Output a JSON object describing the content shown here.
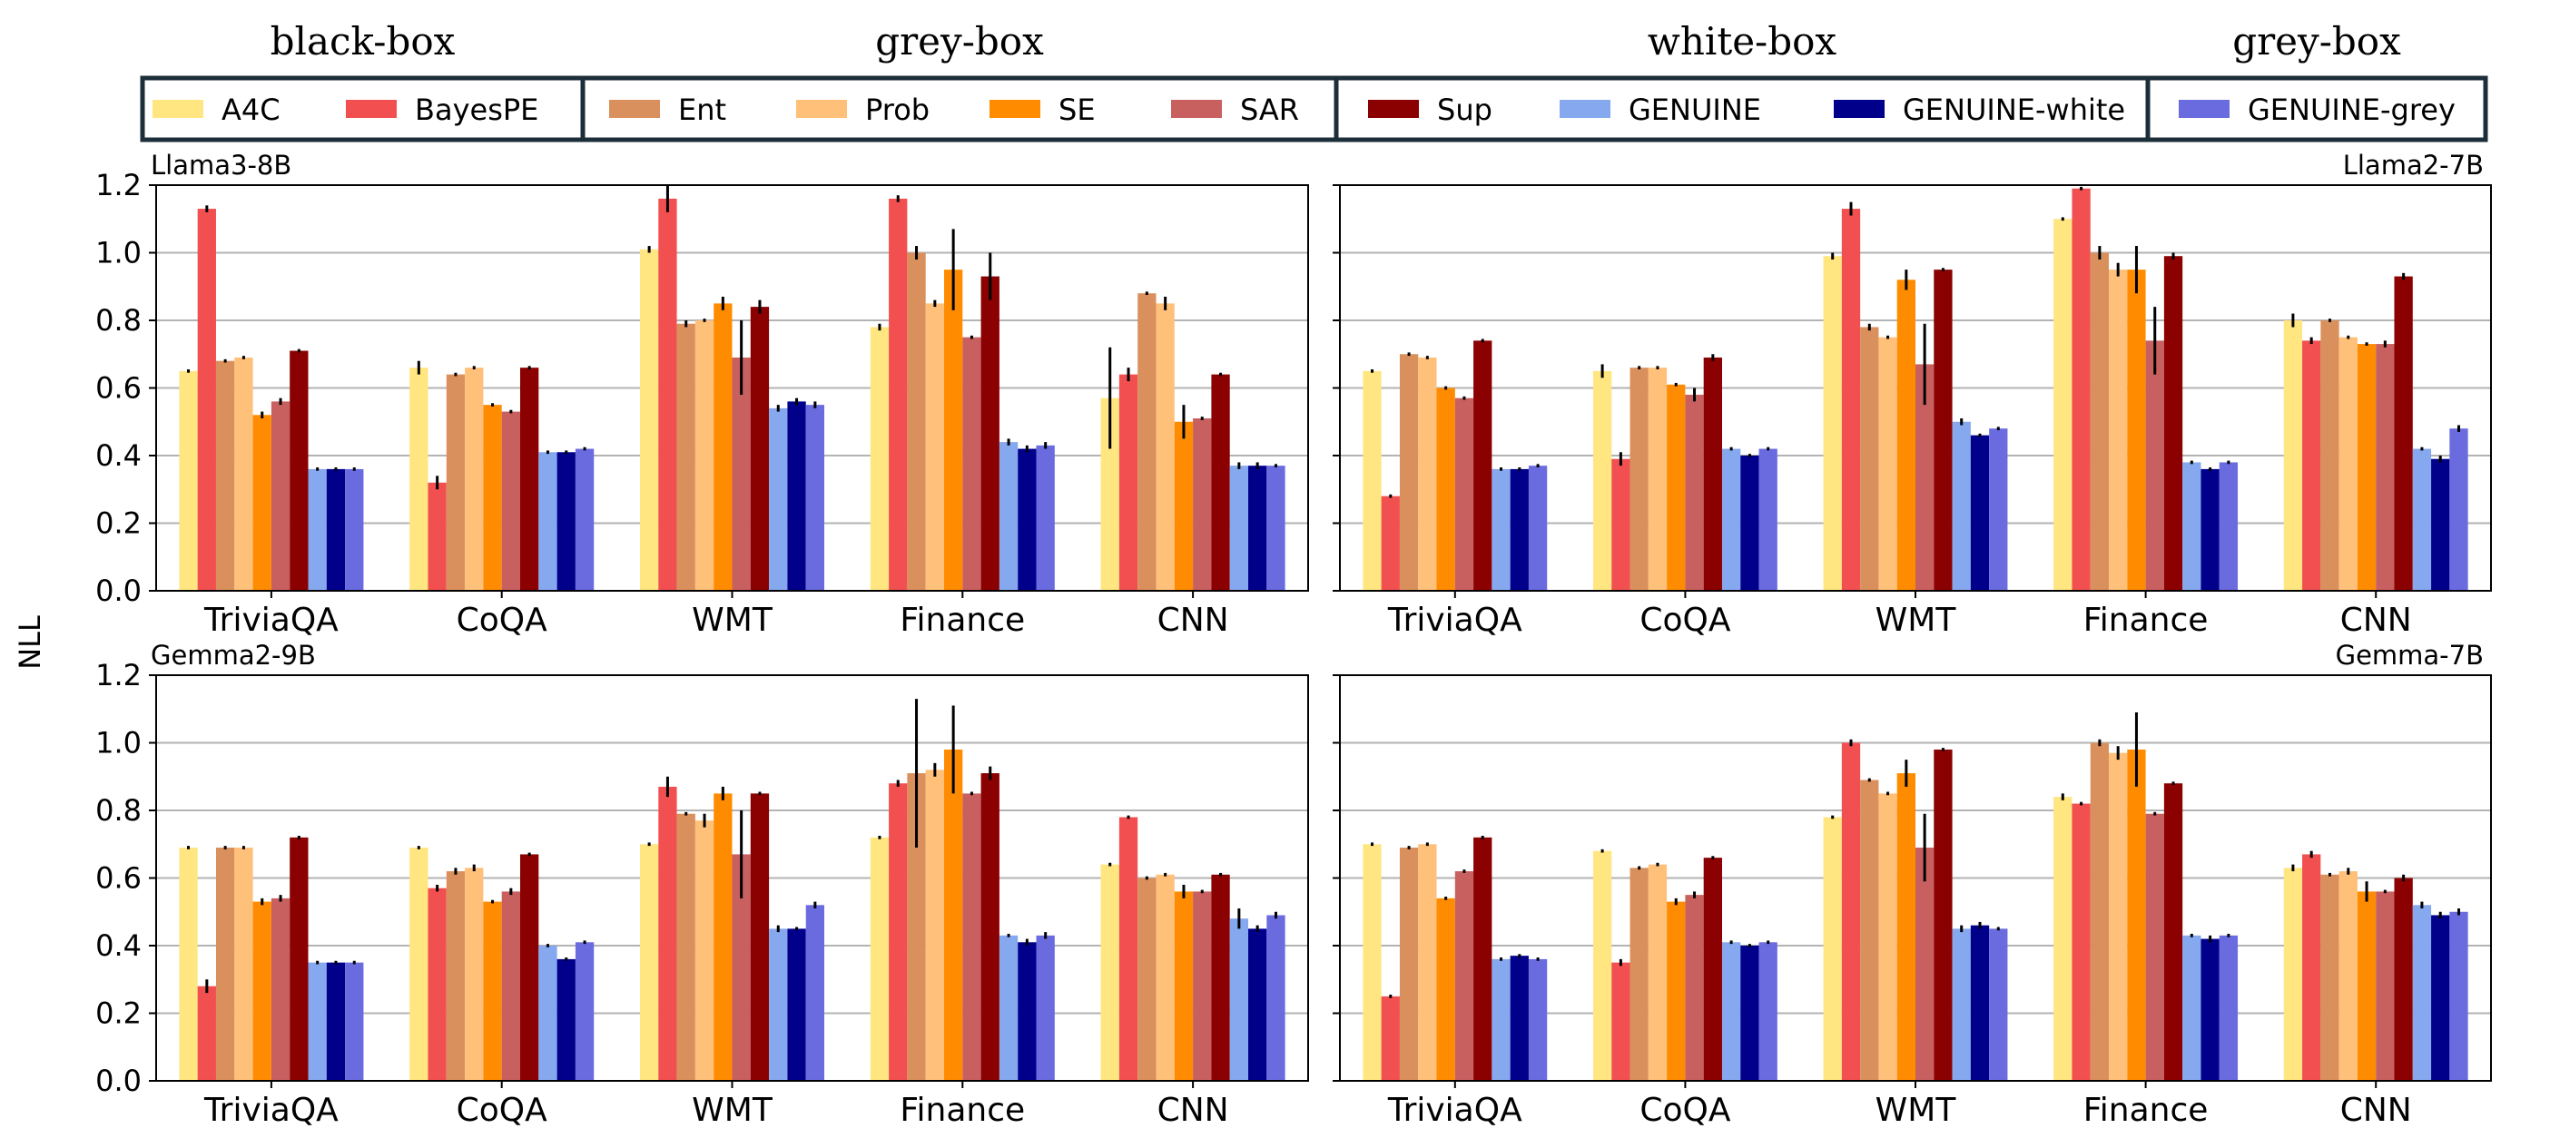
{
  "chart_data": {
    "type": "bar",
    "ylabel": "NLL",
    "ylim": [
      0,
      1.2
    ],
    "yticks": [
      "0.0",
      "0.2",
      "0.4",
      "0.6",
      "0.8",
      "1.0",
      "1.2"
    ],
    "grid": "horizontal",
    "categories": [
      "TriviaQA",
      "CoQA",
      "WMT",
      "Finance",
      "CNN"
    ],
    "legend_groups": [
      {
        "label": "black-box",
        "methods": [
          "A4C",
          "BayesPE"
        ]
      },
      {
        "label": "grey-box",
        "methods": [
          "Ent",
          "Prob",
          "SE",
          "SAR"
        ]
      },
      {
        "label": "white-box",
        "methods": [
          "Sup",
          "GENUINE",
          "GENUINE-white"
        ]
      },
      {
        "label": "grey-box",
        "methods": [
          "GENUINE-grey"
        ]
      }
    ],
    "series_colors": {
      "A4C": "#ffe680",
      "BayesPE": "#f25050",
      "Ent": "#d9905c",
      "Prob": "#ffc07a",
      "SE": "#ff8c00",
      "SAR": "#c86060",
      "Sup": "#8b0000",
      "GENUINE": "#86a8ee",
      "GENUINE-white": "#00008b",
      "GENUINE-grey": "#6b6be0"
    },
    "panels": [
      {
        "title": "Llama3-8B",
        "title_side": "left",
        "values": {
          "A4C": [
            0.65,
            0.66,
            1.01,
            0.78,
            0.57
          ],
          "BayesPE": [
            1.13,
            0.32,
            1.16,
            1.16,
            0.64
          ],
          "Ent": [
            0.68,
            0.64,
            0.79,
            1.0,
            0.88
          ],
          "Prob": [
            0.69,
            0.66,
            0.8,
            0.85,
            0.85
          ],
          "SE": [
            0.52,
            0.55,
            0.85,
            0.95,
            0.5
          ],
          "SAR": [
            0.56,
            0.53,
            0.69,
            0.75,
            0.51
          ],
          "Sup": [
            0.71,
            0.66,
            0.84,
            0.93,
            0.64
          ],
          "GENUINE": [
            0.36,
            0.41,
            0.54,
            0.44,
            0.37
          ],
          "GENUINE-white": [
            0.36,
            0.41,
            0.56,
            0.42,
            0.37
          ],
          "GENUINE-grey": [
            0.36,
            0.42,
            0.55,
            0.43,
            0.37
          ]
        },
        "errors": {
          "A4C": [
            0.005,
            0.02,
            0.01,
            0.01,
            0.15
          ],
          "BayesPE": [
            0.01,
            0.02,
            0.04,
            0.01,
            0.02
          ],
          "Ent": [
            0.005,
            0.005,
            0.01,
            0.02,
            0.005
          ],
          "Prob": [
            0.005,
            0.005,
            0.005,
            0.01,
            0.02
          ],
          "SE": [
            0.01,
            0.005,
            0.02,
            0.12,
            0.05
          ],
          "SAR": [
            0.01,
            0.005,
            0.11,
            0.005,
            0.005
          ],
          "Sup": [
            0.005,
            0.005,
            0.02,
            0.07,
            0.005
          ],
          "GENUINE": [
            0.005,
            0.005,
            0.01,
            0.01,
            0.01
          ],
          "GENUINE-white": [
            0.005,
            0.005,
            0.01,
            0.01,
            0.01
          ],
          "GENUINE-grey": [
            0.005,
            0.005,
            0.01,
            0.01,
            0.005
          ]
        }
      },
      {
        "title": "Llama2-7B",
        "title_side": "right",
        "values": {
          "A4C": [
            0.65,
            0.65,
            0.99,
            1.1,
            0.8
          ],
          "BayesPE": [
            0.28,
            0.39,
            1.13,
            1.19,
            0.74
          ],
          "Ent": [
            0.7,
            0.66,
            0.78,
            1.0,
            0.8
          ],
          "Prob": [
            0.69,
            0.66,
            0.75,
            0.95,
            0.75
          ],
          "SE": [
            0.6,
            0.61,
            0.92,
            0.95,
            0.73
          ],
          "SAR": [
            0.57,
            0.58,
            0.67,
            0.74,
            0.73
          ],
          "Sup": [
            0.74,
            0.69,
            0.95,
            0.99,
            0.93
          ],
          "GENUINE": [
            0.36,
            0.42,
            0.5,
            0.38,
            0.42
          ],
          "GENUINE-white": [
            0.36,
            0.4,
            0.46,
            0.36,
            0.39
          ],
          "GENUINE-grey": [
            0.37,
            0.42,
            0.48,
            0.38,
            0.48
          ]
        },
        "errors": {
          "A4C": [
            0.005,
            0.02,
            0.01,
            0.005,
            0.02
          ],
          "BayesPE": [
            0.005,
            0.02,
            0.02,
            0.005,
            0.01
          ],
          "Ent": [
            0.005,
            0.005,
            0.01,
            0.02,
            0.005
          ],
          "Prob": [
            0.005,
            0.005,
            0.005,
            0.02,
            0.005
          ],
          "SE": [
            0.005,
            0.005,
            0.03,
            0.07,
            0.005
          ],
          "SAR": [
            0.005,
            0.02,
            0.12,
            0.1,
            0.01
          ],
          "Sup": [
            0.005,
            0.01,
            0.005,
            0.01,
            0.01
          ],
          "GENUINE": [
            0.005,
            0.005,
            0.01,
            0.005,
            0.005
          ],
          "GENUINE-white": [
            0.005,
            0.005,
            0.005,
            0.005,
            0.01
          ],
          "GENUINE-grey": [
            0.005,
            0.005,
            0.005,
            0.005,
            0.01
          ]
        }
      },
      {
        "title": "Gemma2-9B",
        "title_side": "left",
        "values": {
          "A4C": [
            0.69,
            0.69,
            0.7,
            0.72,
            0.64
          ],
          "BayesPE": [
            0.28,
            0.57,
            0.87,
            0.88,
            0.78
          ],
          "Ent": [
            0.69,
            0.62,
            0.79,
            0.91,
            0.6
          ],
          "Prob": [
            0.69,
            0.63,
            0.77,
            0.92,
            0.61
          ],
          "SE": [
            0.53,
            0.53,
            0.85,
            0.98,
            0.56
          ],
          "SAR": [
            0.54,
            0.56,
            0.67,
            0.85,
            0.56
          ],
          "Sup": [
            0.72,
            0.67,
            0.85,
            0.91,
            0.61
          ],
          "GENUINE": [
            0.35,
            0.4,
            0.45,
            0.43,
            0.48
          ],
          "GENUINE-white": [
            0.35,
            0.36,
            0.45,
            0.41,
            0.45
          ],
          "GENUINE-grey": [
            0.35,
            0.41,
            0.52,
            0.43,
            0.49
          ]
        },
        "errors": {
          "A4C": [
            0.005,
            0.005,
            0.005,
            0.005,
            0.005
          ],
          "BayesPE": [
            0.02,
            0.01,
            0.03,
            0.01,
            0.005
          ],
          "Ent": [
            0.005,
            0.01,
            0.005,
            0.22,
            0.005
          ],
          "Prob": [
            0.005,
            0.01,
            0.02,
            0.02,
            0.005
          ],
          "SE": [
            0.01,
            0.005,
            0.02,
            0.13,
            0.02
          ],
          "SAR": [
            0.01,
            0.01,
            0.13,
            0.005,
            0.005
          ],
          "Sup": [
            0.005,
            0.005,
            0.005,
            0.02,
            0.005
          ],
          "GENUINE": [
            0.005,
            0.005,
            0.01,
            0.005,
            0.03
          ],
          "GENUINE-white": [
            0.005,
            0.005,
            0.005,
            0.01,
            0.01
          ],
          "GENUINE-grey": [
            0.005,
            0.005,
            0.01,
            0.01,
            0.01
          ]
        }
      },
      {
        "title": "Gemma-7B",
        "title_side": "right",
        "values": {
          "A4C": [
            0.7,
            0.68,
            0.78,
            0.84,
            0.63
          ],
          "BayesPE": [
            0.25,
            0.35,
            1.0,
            0.82,
            0.67
          ],
          "Ent": [
            0.69,
            0.63,
            0.89,
            1.0,
            0.61
          ],
          "Prob": [
            0.7,
            0.64,
            0.85,
            0.97,
            0.62
          ],
          "SE": [
            0.54,
            0.53,
            0.91,
            0.98,
            0.56
          ],
          "SAR": [
            0.62,
            0.55,
            0.69,
            0.79,
            0.56
          ],
          "Sup": [
            0.72,
            0.66,
            0.98,
            0.88,
            0.6
          ],
          "GENUINE": [
            0.36,
            0.41,
            0.45,
            0.43,
            0.52
          ],
          "GENUINE-white": [
            0.37,
            0.4,
            0.46,
            0.42,
            0.49
          ],
          "GENUINE-grey": [
            0.36,
            0.41,
            0.45,
            0.43,
            0.5
          ]
        },
        "errors": {
          "A4C": [
            0.005,
            0.005,
            0.005,
            0.01,
            0.01
          ],
          "BayesPE": [
            0.005,
            0.01,
            0.01,
            0.005,
            0.01
          ],
          "Ent": [
            0.005,
            0.005,
            0.005,
            0.01,
            0.005
          ],
          "Prob": [
            0.005,
            0.005,
            0.005,
            0.02,
            0.01
          ],
          "SE": [
            0.005,
            0.01,
            0.04,
            0.11,
            0.03
          ],
          "SAR": [
            0.005,
            0.01,
            0.1,
            0.005,
            0.005
          ],
          "Sup": [
            0.005,
            0.005,
            0.005,
            0.005,
            0.01
          ],
          "GENUINE": [
            0.005,
            0.005,
            0.01,
            0.005,
            0.01
          ],
          "GENUINE-white": [
            0.005,
            0.005,
            0.01,
            0.01,
            0.01
          ],
          "GENUINE-grey": [
            0.005,
            0.005,
            0.005,
            0.005,
            0.01
          ]
        }
      }
    ]
  }
}
